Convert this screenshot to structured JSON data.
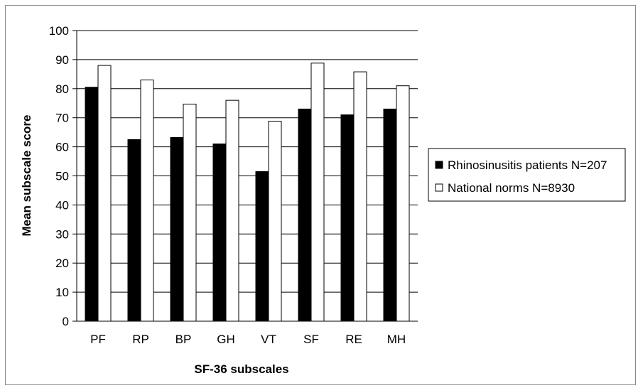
{
  "chart_data": {
    "type": "bar",
    "title": "",
    "xlabel": "SF-36 subscales",
    "ylabel": "Mean subscale score",
    "ylim": [
      0,
      100
    ],
    "yticks": [
      0,
      10,
      20,
      30,
      40,
      50,
      60,
      70,
      80,
      90,
      100
    ],
    "grid": "horizontal",
    "legend_position": "right",
    "categories": [
      "PF",
      "RP",
      "BP",
      "GH",
      "VT",
      "SF",
      "RE",
      "MH"
    ],
    "series": [
      {
        "name": "Rhinosinusitis patients N=207",
        "color": "#000000",
        "values": [
          80.5,
          62.5,
          63.2,
          61.0,
          51.5,
          73.0,
          71.0,
          73.0
        ]
      },
      {
        "name": "National norms N=8930",
        "color": "#ffffff",
        "values": [
          88.0,
          83.0,
          74.7,
          76.0,
          68.8,
          88.8,
          85.8,
          81.0
        ]
      }
    ]
  }
}
